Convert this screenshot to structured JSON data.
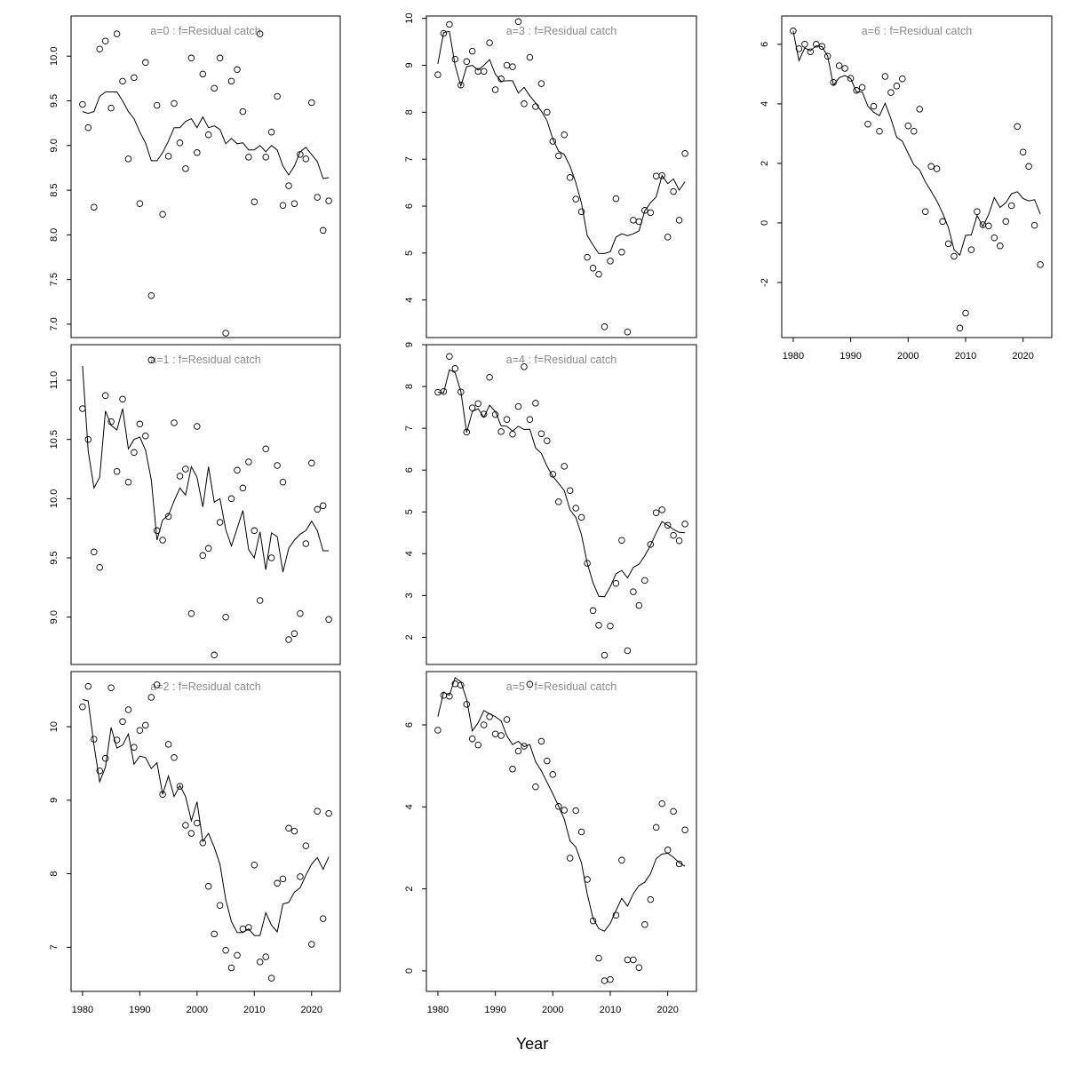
{
  "figure": {
    "xlabel": "Year"
  },
  "chart_data": [
    {
      "type": "scatter",
      "title": "a=0  :  f=Residual catch",
      "x_start": 1980,
      "xlim": [
        1978,
        2025
      ],
      "xticks": [],
      "ylim": [
        6.85,
        10.45
      ],
      "yticks": [
        "7.0",
        "7.5",
        "8.0",
        "8.5",
        "9.0",
        "9.5",
        "10.0"
      ],
      "series": [
        {
          "type": "points",
          "values": [
            9.46,
            9.2,
            8.31,
            10.08,
            10.17,
            9.42,
            10.25,
            9.72,
            8.85,
            9.76,
            8.35,
            9.93,
            7.32,
            9.45,
            8.23,
            8.88,
            9.47,
            9.03,
            8.74,
            9.98,
            8.92,
            9.8,
            9.12,
            9.64,
            9.98,
            6.9,
            9.72,
            9.85,
            9.38,
            8.87,
            8.37,
            10.25,
            8.87,
            9.15,
            9.55,
            8.33,
            8.55,
            8.35,
            8.9,
            8.85,
            9.48,
            8.42,
            8.05,
            8.38
          ]
        },
        {
          "type": "line",
          "values": [
            9.38,
            9.36,
            9.38,
            9.55,
            9.6,
            9.6,
            9.6,
            9.5,
            9.38,
            9.3,
            9.15,
            9.03,
            8.83,
            8.83,
            8.92,
            9.05,
            9.2,
            9.2,
            9.27,
            9.3,
            9.2,
            9.32,
            9.2,
            9.22,
            9.18,
            9.02,
            9.08,
            9.02,
            9.03,
            8.95,
            8.95,
            9.0,
            8.93,
            9.0,
            8.95,
            8.77,
            8.67,
            8.77,
            8.93,
            8.98,
            8.9,
            8.82,
            8.63,
            8.64
          ]
        }
      ]
    },
    {
      "type": "scatter",
      "title": "a=1  :  f=Residual catch",
      "x_start": 1980,
      "xlim": [
        1978,
        2025
      ],
      "xticks": [],
      "ylim": [
        8.6,
        11.3
      ],
      "yticks": [
        "9.0",
        "9.5",
        "10.0",
        "10.5",
        "11.0"
      ],
      "series": [
        {
          "type": "points",
          "values": [
            10.76,
            10.5,
            9.55,
            9.42,
            10.87,
            10.65,
            10.23,
            10.84,
            10.14,
            10.39,
            10.63,
            10.53,
            11.17,
            9.73,
            9.65,
            9.85,
            10.64,
            10.19,
            10.25,
            9.03,
            10.61,
            9.52,
            9.58,
            8.68,
            9.8,
            9.0,
            10.0,
            10.24,
            10.09,
            10.31,
            9.73,
            9.14,
            10.42,
            9.5,
            10.28,
            10.14,
            8.81,
            8.86,
            9.03,
            9.62,
            10.3,
            9.91,
            9.94,
            8.98
          ]
        },
        {
          "type": "line",
          "values": [
            11.12,
            10.4,
            10.09,
            10.18,
            10.74,
            10.62,
            10.58,
            10.76,
            10.42,
            10.5,
            10.52,
            10.41,
            10.16,
            9.65,
            9.82,
            9.86,
            9.98,
            10.09,
            10.03,
            10.27,
            10.18,
            9.93,
            10.27,
            9.97,
            10.0,
            9.74,
            9.6,
            9.75,
            9.9,
            9.57,
            9.5,
            9.72,
            9.4,
            9.71,
            9.68,
            9.38,
            9.58,
            9.65,
            9.7,
            9.73,
            9.81,
            9.73,
            9.56,
            9.56
          ]
        }
      ]
    },
    {
      "type": "scatter",
      "title": "a=2  :  f=Residual catch",
      "x_start": 1980,
      "xlim": [
        1978,
        2025
      ],
      "xticks": [
        "1980",
        "1990",
        "2000",
        "2010",
        "2020"
      ],
      "ylim": [
        6.4,
        10.75
      ],
      "yticks": [
        "7",
        "8",
        "9",
        "10"
      ],
      "series": [
        {
          "type": "points",
          "values": [
            10.27,
            10.55,
            9.83,
            9.4,
            9.57,
            10.53,
            9.82,
            10.07,
            10.23,
            9.72,
            9.95,
            10.02,
            10.4,
            10.57,
            9.08,
            9.76,
            9.58,
            9.19,
            8.66,
            8.55,
            8.69,
            8.42,
            7.83,
            7.18,
            7.57,
            6.96,
            6.72,
            6.89,
            7.25,
            7.27,
            8.12,
            6.8,
            6.87,
            6.58,
            7.87,
            7.93,
            8.62,
            8.58,
            7.96,
            8.38,
            7.04,
            8.85,
            7.39,
            8.82
          ]
        },
        {
          "type": "line",
          "values": [
            10.37,
            10.35,
            9.75,
            9.25,
            9.45,
            9.99,
            9.71,
            9.75,
            9.9,
            9.49,
            9.6,
            9.58,
            9.43,
            9.51,
            9.08,
            9.33,
            9.05,
            9.2,
            9.05,
            8.72,
            8.98,
            8.44,
            8.55,
            8.36,
            8.13,
            7.65,
            7.35,
            7.2,
            7.2,
            7.25,
            7.16,
            7.16,
            7.47,
            7.3,
            7.21,
            7.59,
            7.61,
            7.75,
            7.81,
            7.98,
            8.13,
            8.22,
            8.06,
            8.23
          ]
        }
      ]
    },
    {
      "type": "scatter",
      "title": "a=3  :  f=Residual catch",
      "x_start": 1980,
      "xlim": [
        1978,
        2025
      ],
      "xticks": [],
      "ylim": [
        3.2,
        10.05
      ],
      "yticks": [
        "4",
        "5",
        "6",
        "7",
        "8",
        "9",
        "10"
      ],
      "series": [
        {
          "type": "points",
          "values": [
            8.8,
            9.68,
            9.87,
            9.13,
            8.58,
            9.08,
            9.3,
            8.87,
            8.87,
            9.48,
            8.48,
            8.71,
            9.0,
            8.97,
            9.93,
            8.18,
            9.17,
            8.12,
            8.61,
            8.0,
            7.38,
            7.07,
            7.52,
            6.61,
            6.15,
            5.88,
            4.91,
            4.68,
            4.55,
            3.43,
            4.83,
            6.16,
            5.02,
            3.32,
            5.7,
            5.67,
            5.91,
            5.86,
            6.64,
            6.65,
            5.34,
            6.31,
            5.7,
            7.12
          ]
        },
        {
          "type": "line",
          "values": [
            9.03,
            9.7,
            9.72,
            9.0,
            8.56,
            8.97,
            9.0,
            8.9,
            9.0,
            9.12,
            8.81,
            8.66,
            8.67,
            8.67,
            8.41,
            8.53,
            8.35,
            8.2,
            8.02,
            7.82,
            7.43,
            7.17,
            7.1,
            6.85,
            6.5,
            6.06,
            5.37,
            5.17,
            4.99,
            4.99,
            5.03,
            5.34,
            5.41,
            5.37,
            5.41,
            5.47,
            5.9,
            6.07,
            6.2,
            6.65,
            6.48,
            6.58,
            6.34,
            6.52
          ]
        }
      ]
    },
    {
      "type": "scatter",
      "title": "a=4  :  f=Residual catch",
      "x_start": 1980,
      "xlim": [
        1978,
        2025
      ],
      "xticks": [],
      "ylim": [
        1.35,
        9.0
      ],
      "yticks": [
        "2",
        "3",
        "4",
        "5",
        "6",
        "7",
        "8",
        "9"
      ],
      "series": [
        {
          "type": "points",
          "values": [
            7.86,
            7.88,
            8.72,
            8.43,
            7.87,
            6.91,
            7.49,
            7.59,
            7.34,
            8.22,
            7.33,
            6.92,
            7.21,
            6.86,
            7.52,
            8.47,
            7.21,
            7.6,
            6.87,
            6.7,
            5.9,
            5.24,
            6.09,
            5.51,
            5.09,
            4.87,
            3.77,
            2.64,
            2.29,
            1.57,
            2.27,
            3.29,
            4.32,
            1.68,
            3.09,
            2.76,
            3.36,
            4.22,
            4.98,
            5.05,
            4.68,
            4.44,
            4.31,
            4.71
          ]
        },
        {
          "type": "line",
          "values": [
            7.86,
            7.85,
            8.4,
            8.33,
            7.88,
            6.9,
            7.4,
            7.47,
            7.26,
            7.55,
            7.4,
            7.06,
            7.05,
            6.93,
            7.05,
            6.97,
            6.98,
            6.53,
            6.4,
            6.09,
            5.85,
            5.68,
            5.51,
            5.05,
            4.87,
            4.45,
            3.77,
            3.3,
            2.98,
            2.97,
            3.21,
            3.52,
            3.6,
            3.42,
            3.67,
            3.75,
            3.95,
            4.2,
            4.5,
            4.77,
            4.68,
            4.58,
            4.51,
            4.5
          ]
        }
      ]
    },
    {
      "type": "scatter",
      "title": "a=5  :  f=Residual catch",
      "x_start": 1980,
      "xlim": [
        1978,
        2025
      ],
      "xticks": [
        "1980",
        "1990",
        "2000",
        "2010",
        "2020"
      ],
      "ylim": [
        -0.5,
        7.3
      ],
      "yticks": [
        "0",
        "2",
        "4",
        "6"
      ],
      "series": [
        {
          "type": "points",
          "values": [
            5.87,
            6.72,
            6.7,
            7.0,
            6.97,
            6.5,
            5.66,
            5.51,
            6.0,
            6.2,
            5.78,
            5.74,
            6.13,
            4.92,
            5.36,
            5.48,
            6.99,
            4.49,
            5.6,
            5.12,
            4.79,
            4.01,
            3.92,
            2.75,
            3.91,
            3.39,
            2.23,
            1.22,
            0.31,
            -0.24,
            -0.21,
            1.36,
            2.7,
            0.27,
            0.27,
            0.08,
            1.13,
            1.74,
            3.5,
            4.08,
            2.95,
            3.89,
            2.61,
            3.44
          ]
        },
        {
          "type": "line",
          "values": [
            6.2,
            6.8,
            6.72,
            7.15,
            7.05,
            6.62,
            5.85,
            6.05,
            6.35,
            6.27,
            6.2,
            6.1,
            5.73,
            5.52,
            5.6,
            5.47,
            5.52,
            5.1,
            4.88,
            4.6,
            4.32,
            4.02,
            3.7,
            3.17,
            3.02,
            2.63,
            1.87,
            1.28,
            1.03,
            0.97,
            1.16,
            1.47,
            1.77,
            1.58,
            1.88,
            2.08,
            2.16,
            2.37,
            2.74,
            2.85,
            2.87,
            2.77,
            2.64,
            2.55
          ]
        }
      ]
    },
    {
      "type": "scatter",
      "title": "a=6  :  f=Residual catch",
      "x_start": 1980,
      "xlim": [
        1978,
        2025
      ],
      "xticks": [
        "1980",
        "1990",
        "2000",
        "2010",
        "2020"
      ],
      "ylim": [
        -3.85,
        6.95
      ],
      "yticks": [
        "-2",
        "0",
        "2",
        "4",
        "6"
      ],
      "series": [
        {
          "type": "points",
          "values": [
            6.45,
            5.85,
            6.0,
            5.75,
            6.0,
            5.93,
            5.6,
            4.72,
            5.28,
            5.19,
            4.86,
            4.45,
            4.55,
            3.32,
            3.92,
            3.08,
            4.92,
            4.38,
            4.6,
            4.84,
            3.26,
            3.08,
            3.82,
            0.38,
            1.9,
            1.82,
            0.05,
            -0.7,
            -1.12,
            -3.53,
            -3.03,
            -0.9,
            0.38,
            -0.06,
            -0.1,
            -0.5,
            -0.77,
            0.05,
            0.58,
            3.24,
            2.38,
            1.9,
            -0.08,
            -1.4
          ]
        },
        {
          "type": "line",
          "values": [
            6.45,
            5.45,
            5.88,
            5.78,
            5.95,
            5.92,
            5.6,
            4.62,
            4.88,
            4.95,
            4.85,
            4.4,
            4.4,
            3.92,
            3.72,
            3.6,
            4.02,
            3.5,
            2.88,
            2.74,
            2.34,
            1.95,
            1.78,
            1.38,
            1.06,
            0.74,
            0.33,
            -0.15,
            -0.9,
            -1.08,
            -0.42,
            -0.4,
            0.25,
            -0.12,
            0.28,
            0.85,
            0.52,
            0.68,
            0.98,
            1.05,
            0.82,
            0.74,
            0.78,
            0.3
          ]
        }
      ]
    }
  ]
}
